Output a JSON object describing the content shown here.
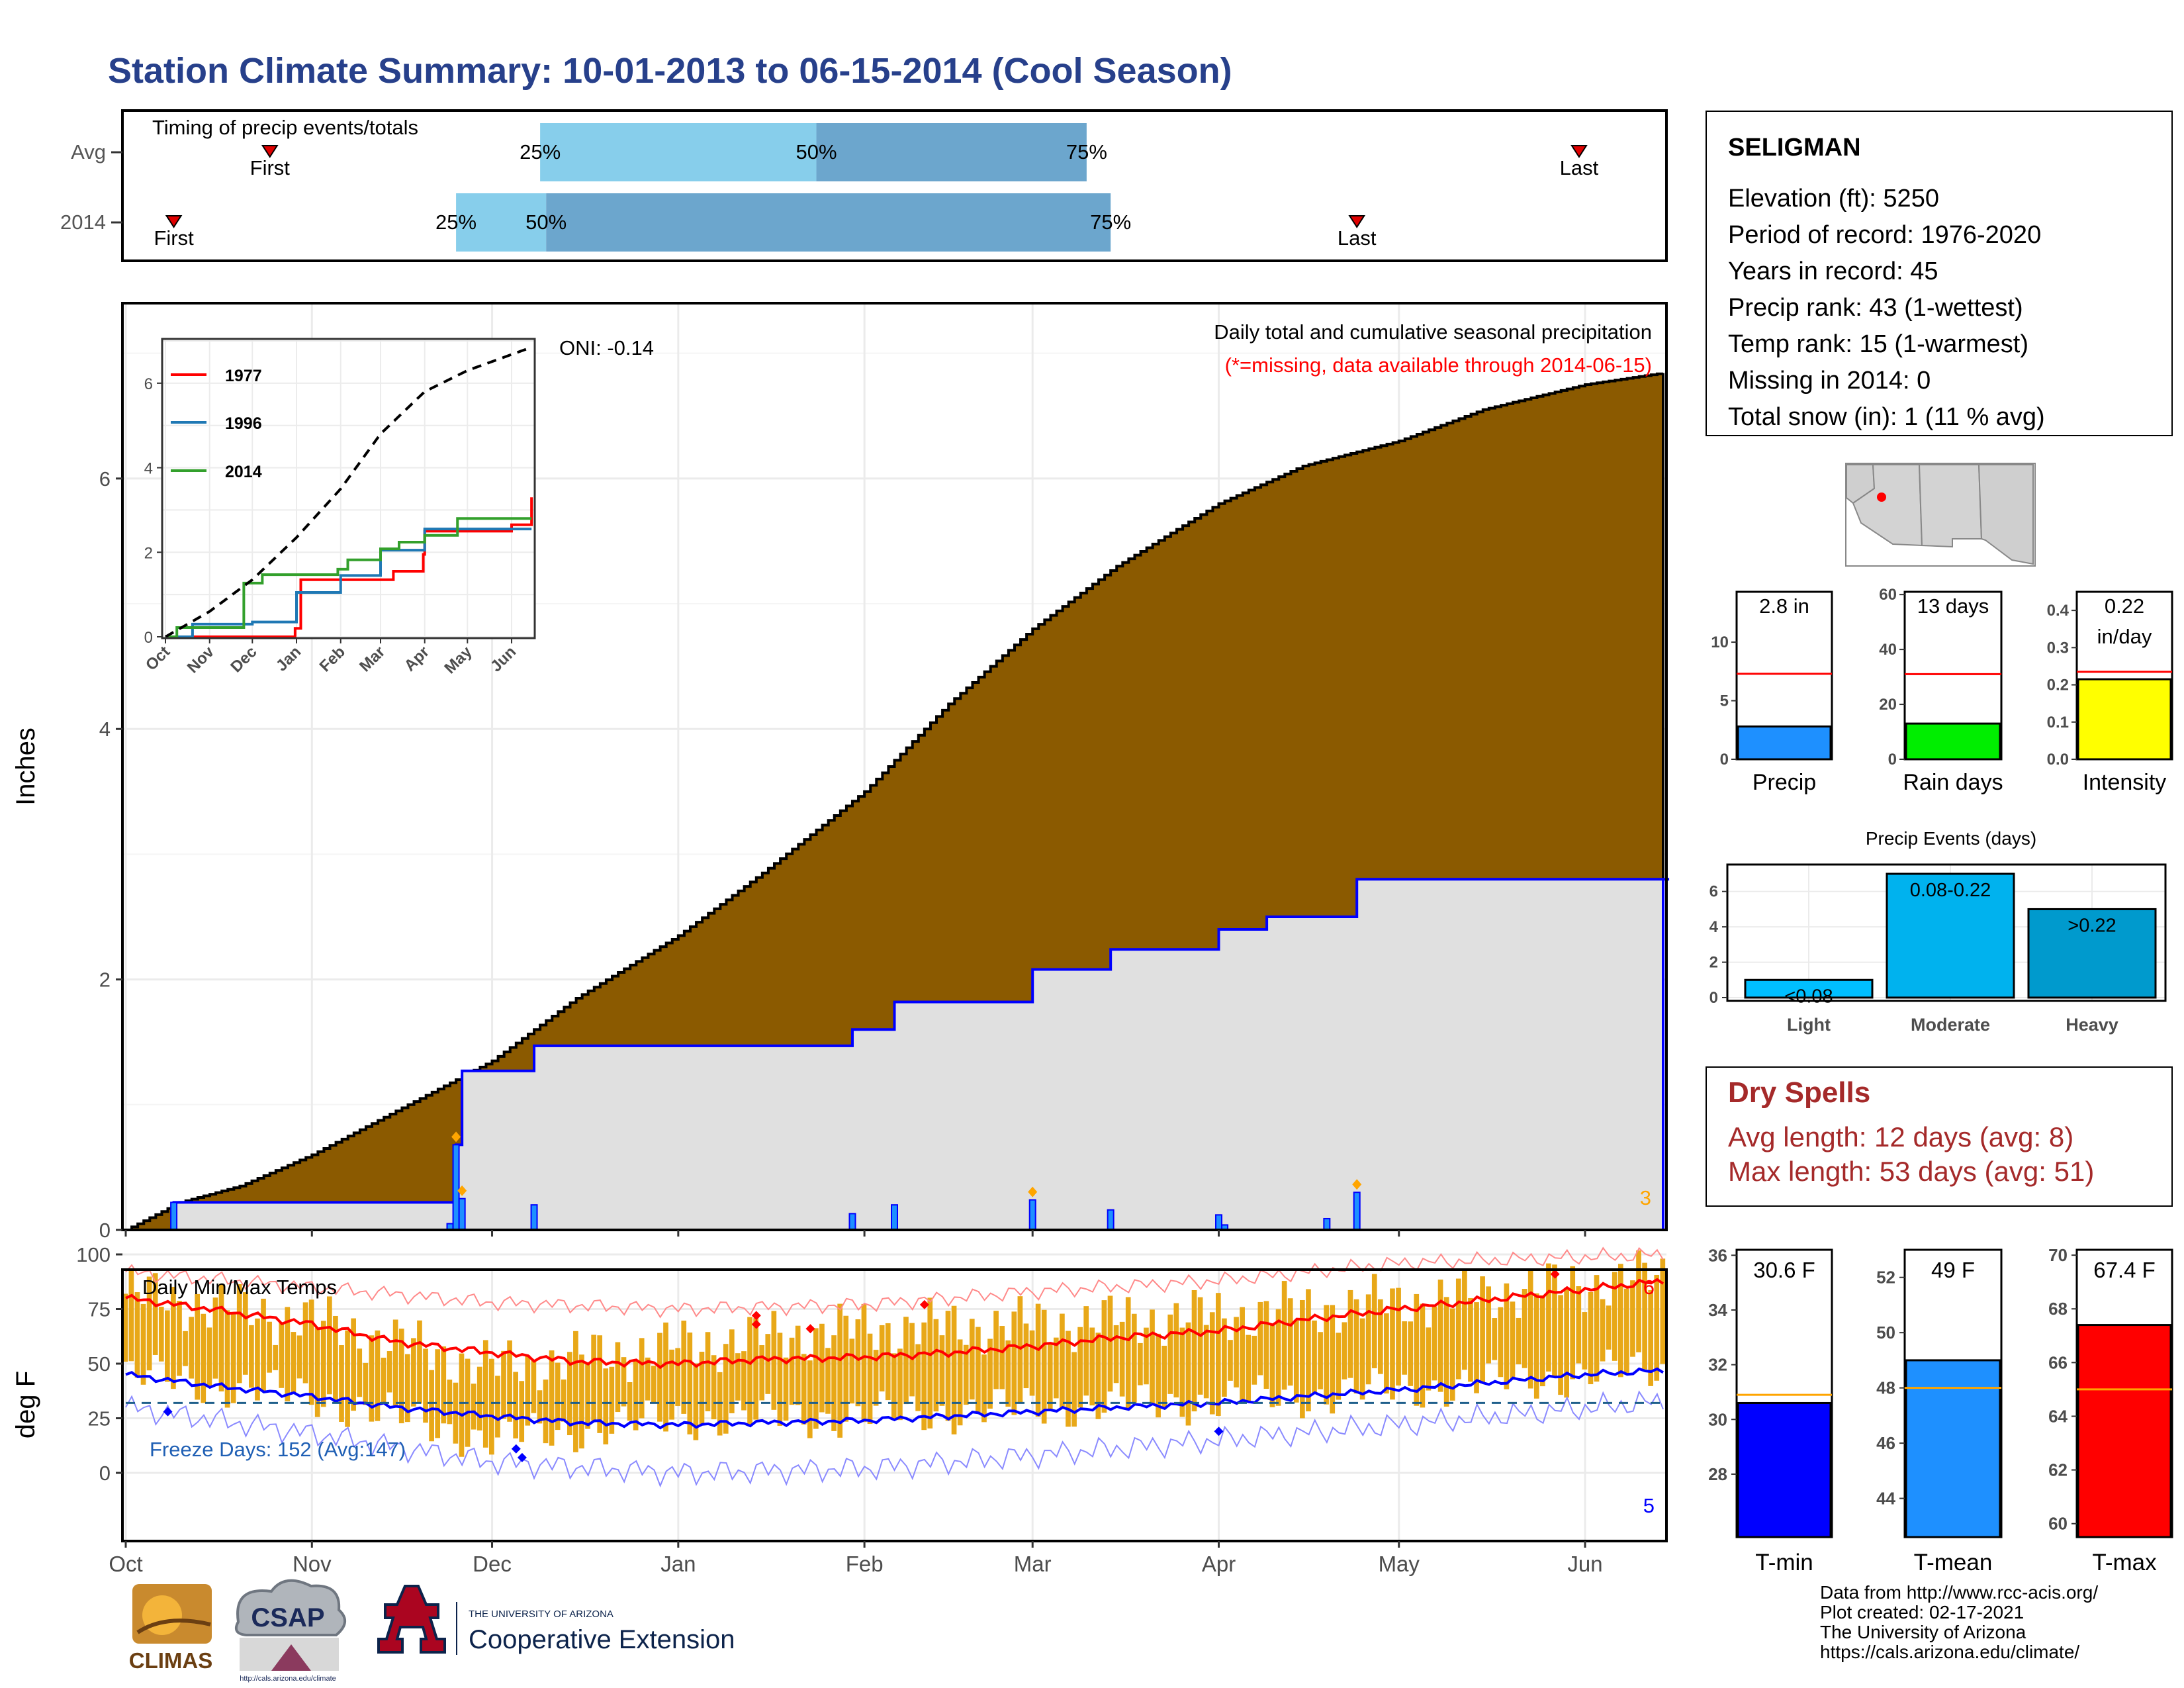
{
  "title": "Station Climate Summary: 10-01-2013 to 06-15-2014 (Cool Season)",
  "colors": {
    "title": "#27408b",
    "cum_fill": "#8b5a00",
    "bar_light": "#87ceeb",
    "bar_dark": "#6ca6cd",
    "tmin": "#0000ff",
    "tmean": "#1e90ff",
    "tmax": "#ff0000",
    "precip": "#1e90ff",
    "raindays": "#00ee00",
    "intensity": "#ffff00",
    "events": [
      "#00bfff",
      "#00b2ee",
      "#009acd"
    ],
    "dry_spells": "#a52a2a",
    "temp_fill": "#e8a818",
    "orange_marker": "#ffa500"
  },
  "timing": {
    "title": "Timing of precip events/totals",
    "rows": [
      {
        "label": "Avg",
        "first_label": "First",
        "last_label": "Last",
        "first": "Oct 25",
        "p25": "Dec 9",
        "p50": "Jan 24",
        "p75": "Mar 10",
        "last": "May 31",
        "p25_label": "25%",
        "p50_label": "50%",
        "p75_label": "75%"
      },
      {
        "label": "2014",
        "first_label": "First",
        "last_label": "Last",
        "first": "Oct 9",
        "p25": "Nov 25",
        "p50": "Dec 10",
        "p75": "Mar 14",
        "last": "Apr 24",
        "p25_label": "25%",
        "p50_label": "50%",
        "p75_label": "75%"
      }
    ]
  },
  "precip_panel": {
    "ylabel": "Inches",
    "oni": "ONI: -0.14",
    "subtitle": "Daily total and cumulative seasonal precipitation",
    "missing_note": "(*=missing, data available through 2014-06-15)",
    "corner_count": "3"
  },
  "inset": {
    "series_names": [
      "1977",
      "1996",
      "2014"
    ],
    "yticks": [
      "0",
      "2",
      "4",
      "6"
    ],
    "xticks": [
      "Oct",
      "Nov",
      "Dec",
      "Jan",
      "Feb",
      "Mar",
      "Apr",
      "May",
      "Jun"
    ]
  },
  "temp_panel": {
    "title": "Daily Min/Max Temps",
    "ylabel": "deg F",
    "freeze": "Freeze Days: 152 (Avg:147)",
    "yticks": [
      "0",
      "25",
      "50",
      "75",
      "100"
    ],
    "count_top": "6",
    "count_bottom": "5"
  },
  "months": [
    "Oct",
    "Nov",
    "Dec",
    "Jan",
    "Feb",
    "Mar",
    "Apr",
    "May",
    "Jun"
  ],
  "station": {
    "name": "SELIGMAN",
    "lines": [
      "Elevation (ft): 5250",
      "Period of record: 1976-2020",
      "Years in record: 45",
      "Precip rank: 43 (1-wettest)",
      "Temp rank: 15 (1-warmest)",
      "Missing in 2014: 0",
      "Total snow (in): 1 (11 % avg)"
    ]
  },
  "minibars": [
    {
      "label": "Precip",
      "value_label": "2.8 in",
      "value": 2.8,
      "avg": 7.3,
      "ymin": 0,
      "ymax": 14.3,
      "yticks": [
        "0",
        "5",
        "10"
      ]
    },
    {
      "label": "Rain days",
      "value_label": "13 days",
      "value": 13,
      "avg": 31,
      "ymin": 0,
      "ymax": 61,
      "yticks": [
        "0",
        "20",
        "40",
        "60"
      ]
    },
    {
      "label": "Intensity",
      "value_label": "0.22",
      "value_label2": "in/day",
      "value": 0.215,
      "avg": 0.235,
      "ymin": 0,
      "ymax": 0.45,
      "yticks": [
        "0.0",
        "0.1",
        "0.2",
        "0.3",
        "0.4"
      ]
    }
  ],
  "events": {
    "title": "Precip Events (days)",
    "yticks": [
      "0",
      "2",
      "4",
      "6"
    ],
    "bars": [
      {
        "label": "Light",
        "value_label": "<0.08",
        "value": 1
      },
      {
        "label": "Moderate",
        "value_label": "0.08-0.22",
        "value": 7
      },
      {
        "label": "Heavy",
        "value_label": ">0.22",
        "value": 5
      }
    ]
  },
  "dry_spells": {
    "title": "Dry Spells",
    "lines": [
      "Avg length: 12 days (avg: 8)",
      "Max length: 53 days (avg: 51)"
    ]
  },
  "temp_bars": [
    {
      "label": "T-min",
      "value_label": "30.6 F",
      "value": 30.6,
      "avg": 30.9,
      "ymin": 25.7,
      "ymax": 36.2,
      "yticks": [
        "28",
        "30",
        "32",
        "34",
        "36"
      ]
    },
    {
      "label": "T-mean",
      "value_label": "49 F",
      "value": 49.0,
      "avg": 48.0,
      "ymin": 42.6,
      "ymax": 53.0,
      "yticks": [
        "44",
        "46",
        "48",
        "50",
        "52"
      ]
    },
    {
      "label": "T-max",
      "value_label": "67.4 F",
      "value": 67.4,
      "avg": 65.0,
      "ymin": 59.5,
      "ymax": 70.2,
      "yticks": [
        "60",
        "62",
        "64",
        "66",
        "68",
        "70"
      ]
    }
  ],
  "footer": {
    "lines": [
      "Data from http://www.rcc-acis.org/",
      "Plot created: 02-17-2021",
      "The University of Arizona",
      "https://cals.arizona.edu/climate/"
    ],
    "logos": {
      "climas": "CLIMAS",
      "csap": "CSAP",
      "ua_small": "THE UNIVERSITY OF ARIZONA",
      "ua_big": "Cooperative Extension",
      "csap_url": "http://cals.arizona.edu/climate"
    }
  },
  "chart_data": [
    {
      "type": "area",
      "title": "Daily total and cumulative seasonal precipitation",
      "ylabel": "Inches",
      "ylim": [
        0,
        7.4
      ],
      "x_range": [
        "2013-10-01",
        "2014-06-15"
      ],
      "series": [
        {
          "name": "cumulative average",
          "x": [
            "2013-10-01",
            "2013-10-10",
            "2013-10-20",
            "2013-11-01",
            "2013-11-15",
            "2013-12-01",
            "2013-12-15",
            "2014-01-01",
            "2014-01-15",
            "2014-02-01",
            "2014-02-15",
            "2014-03-01",
            "2014-03-15",
            "2014-04-01",
            "2014-04-15",
            "2014-05-01",
            "2014-05-15",
            "2014-06-01",
            "2014-06-15"
          ],
          "y": [
            0,
            0.22,
            0.35,
            0.6,
            0.95,
            1.35,
            1.85,
            2.35,
            2.85,
            3.5,
            4.2,
            4.8,
            5.3,
            5.8,
            6.1,
            6.3,
            6.55,
            6.75,
            6.85
          ]
        },
        {
          "name": "2014 cumulative",
          "x": [
            "2013-10-01",
            "2013-10-09",
            "2013-11-24",
            "2013-11-25",
            "2013-11-26",
            "2013-12-08",
            "2014-01-30",
            "2014-02-06",
            "2014-03-01",
            "2014-03-14",
            "2014-04-01",
            "2014-04-09",
            "2014-04-24",
            "2014-06-15"
          ],
          "y": [
            0,
            0.22,
            0.22,
            0.68,
            1.27,
            1.47,
            1.6,
            1.82,
            2.08,
            2.24,
            2.4,
            2.5,
            2.8,
            2.8
          ]
        },
        {
          "name": "2014 daily",
          "x": [
            "2013-10-09",
            "2013-11-24",
            "2013-11-25",
            "2013-11-26",
            "2013-12-08",
            "2014-01-30",
            "2014-02-06",
            "2014-03-01",
            "2014-03-14",
            "2014-04-01",
            "2014-04-02",
            "2014-04-19",
            "2014-04-24"
          ],
          "y": [
            0.22,
            0.05,
            0.68,
            0.25,
            0.2,
            0.13,
            0.2,
            0.24,
            0.16,
            0.12,
            0.04,
            0.09,
            0.3
          ]
        }
      ]
    },
    {
      "type": "line",
      "title": "",
      "xlabel": "",
      "ylabel": "",
      "ylim": [
        0,
        7
      ],
      "categories": [
        "Oct",
        "Nov",
        "Dec",
        "Jan",
        "Feb",
        "Mar",
        "Apr",
        "May",
        "Jun"
      ],
      "series": [
        {
          "name": "1977",
          "x": [
            "2013-10-01",
            "2013-12-31",
            "2014-01-04",
            "2014-03-10",
            "2014-03-31",
            "2014-04-01",
            "2014-06-01",
            "2014-06-15"
          ],
          "y": [
            0,
            0.2,
            1.35,
            1.55,
            1.95,
            2.5,
            2.65,
            3.3
          ]
        },
        {
          "name": "1996",
          "x": [
            "2013-10-01",
            "2013-10-20",
            "2013-12-01",
            "2014-01-01",
            "2014-02-01",
            "2014-03-01",
            "2014-04-01",
            "2014-06-15"
          ],
          "y": [
            0,
            0.3,
            0.35,
            1.05,
            1.45,
            2.05,
            2.55,
            2.55
          ]
        },
        {
          "name": "2014",
          "x": [
            "2013-10-01",
            "2013-10-09",
            "2013-11-25",
            "2013-12-08",
            "2014-01-30",
            "2014-02-06",
            "2014-03-01",
            "2014-03-14",
            "2014-04-01",
            "2014-04-24",
            "2014-06-15"
          ],
          "y": [
            0,
            0.22,
            1.27,
            1.47,
            1.6,
            1.82,
            2.08,
            2.24,
            2.4,
            2.8,
            2.8
          ]
        },
        {
          "name": "average",
          "x": [
            "2013-10-01",
            "2013-11-01",
            "2013-12-01",
            "2014-01-01",
            "2014-02-01",
            "2014-03-01",
            "2014-04-01",
            "2014-05-01",
            "2014-06-15"
          ],
          "y": [
            0,
            0.6,
            1.35,
            2.35,
            3.5,
            4.8,
            5.8,
            6.3,
            6.85
          ]
        }
      ]
    },
    {
      "type": "line",
      "title": "Daily Min/Max Temps",
      "ylabel": "deg F",
      "ylim": [
        -15,
        108
      ],
      "x_range": [
        "2013-10-01",
        "2014-06-15"
      ],
      "series": [
        {
          "name": "avg max",
          "x": [
            "2013-10-01",
            "2013-10-15",
            "2013-11-01",
            "2013-11-15",
            "2013-12-01",
            "2013-12-15",
            "2014-01-01",
            "2014-01-15",
            "2014-02-01",
            "2014-02-15",
            "2014-03-01",
            "2014-03-15",
            "2014-04-01",
            "2014-04-15",
            "2014-05-01",
            "2014-05-15",
            "2014-06-01",
            "2014-06-15"
          ],
          "y": [
            80,
            75,
            68,
            60,
            55,
            51,
            50,
            52,
            53,
            55,
            58,
            62,
            65,
            70,
            75,
            79,
            84,
            88
          ]
        },
        {
          "name": "avg min",
          "x": [
            "2013-10-01",
            "2013-10-15",
            "2013-11-01",
            "2013-11-15",
            "2013-12-01",
            "2013-12-15",
            "2014-01-01",
            "2014-01-15",
            "2014-02-01",
            "2014-02-15",
            "2014-03-01",
            "2014-03-15",
            "2014-04-01",
            "2014-04-15",
            "2014-05-01",
            "2014-05-15",
            "2014-06-01",
            "2014-06-15"
          ],
          "y": [
            45,
            40,
            35,
            30,
            26,
            23,
            22,
            23,
            24,
            26,
            28,
            30,
            32,
            35,
            38,
            41,
            45,
            47
          ]
        },
        {
          "name": "record high",
          "x": [
            "2013-10-01",
            "2013-11-01",
            "2013-12-01",
            "2014-01-01",
            "2014-02-01",
            "2014-03-01",
            "2014-04-01",
            "2014-05-01",
            "2014-06-15"
          ],
          "y": [
            92,
            85,
            78,
            75,
            77,
            83,
            88,
            96,
            100
          ]
        },
        {
          "name": "record low",
          "x": [
            "2013-10-01",
            "2013-11-01",
            "2013-12-01",
            "2014-01-01",
            "2014-02-01",
            "2014-03-01",
            "2014-04-01",
            "2014-05-01",
            "2014-06-15"
          ],
          "y": [
            30,
            18,
            5,
            0,
            2,
            8,
            15,
            22,
            33
          ]
        },
        {
          "name": "2014 max",
          "x": [
            "2013-10-01",
            "2013-11-01",
            "2013-12-01",
            "2014-01-01",
            "2014-02-01",
            "2014-03-01",
            "2014-04-01",
            "2014-05-01",
            "2014-06-15"
          ],
          "y": [
            82,
            70,
            48,
            58,
            66,
            68,
            72,
            78,
            90
          ]
        },
        {
          "name": "2014 min",
          "x": [
            "2013-10-01",
            "2013-11-01",
            "2013-12-01",
            "2014-01-01",
            "2014-02-01",
            "2014-03-01",
            "2014-04-01",
            "2014-05-01",
            "2014-06-15"
          ],
          "y": [
            45,
            35,
            15,
            25,
            26,
            30,
            33,
            38,
            48
          ]
        },
        {
          "name": "freezing",
          "x": [
            "2013-10-01",
            "2014-06-15"
          ],
          "y": [
            32,
            32
          ]
        }
      ]
    }
  ]
}
